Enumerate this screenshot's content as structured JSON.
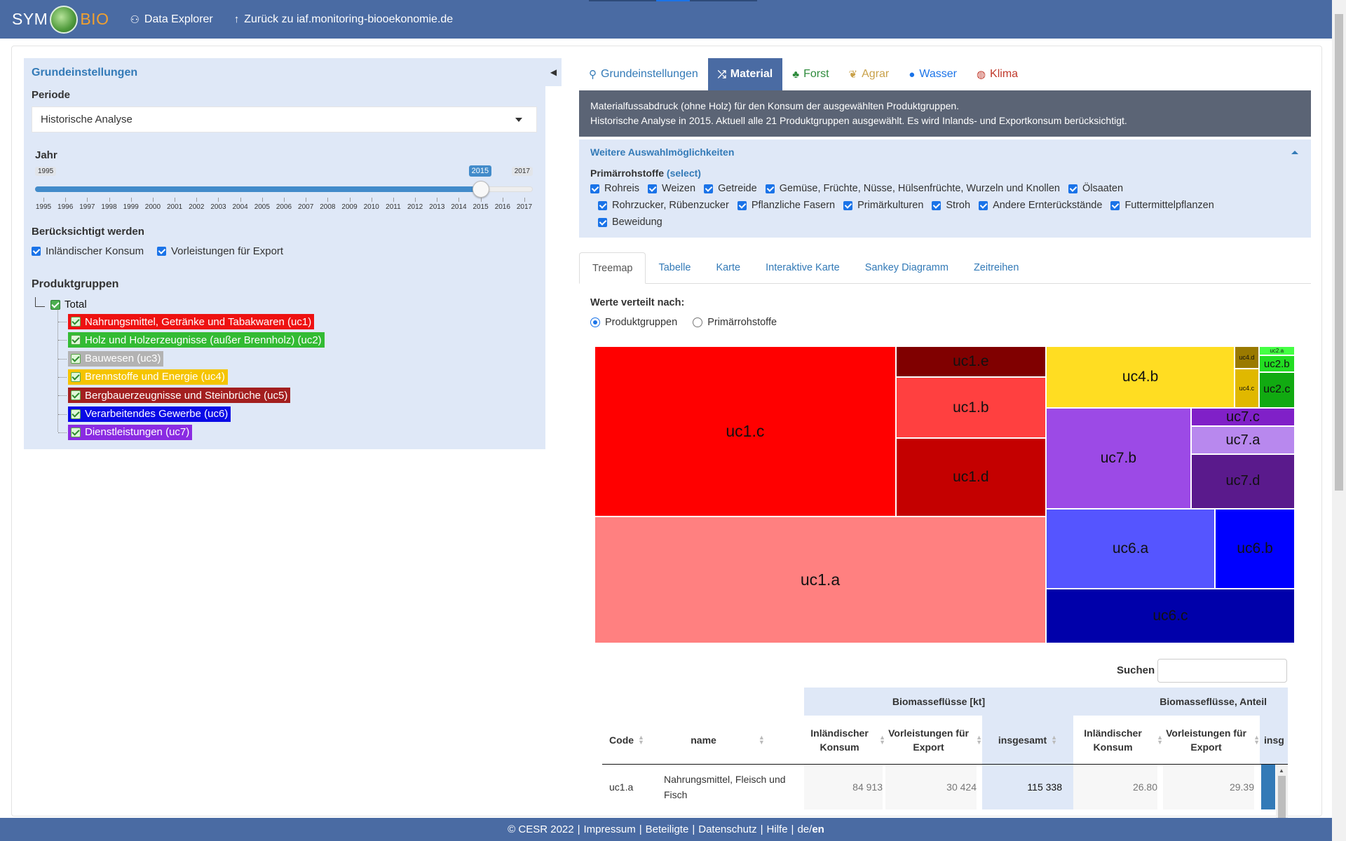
{
  "navbar": {
    "brand_sym": "SYM",
    "brand_bio": "BIO",
    "links": [
      {
        "icon": "binoculars-icon",
        "glyph": "⚇",
        "label": "Data Explorer"
      },
      {
        "icon": "arrow-up-icon",
        "glyph": "↑",
        "label": "Zurück zu iaf.monitoring-biooekonomie.de"
      }
    ],
    "color": "#4a6ba3"
  },
  "sidebar": {
    "title": "Grundeinstellungen",
    "periode_label": "Periode",
    "periode_value": "Historische Analyse",
    "jahr_label": "Jahr",
    "slider": {
      "min": 1995,
      "max": 2017,
      "value": 2015,
      "min_label": "1995",
      "max_label": "2017",
      "value_label": "2015",
      "ticks": [
        "1995",
        "1996",
        "1997",
        "1998",
        "1999",
        "2000",
        "2001",
        "2002",
        "2003",
        "2004",
        "2005",
        "2006",
        "2007",
        "2008",
        "2009",
        "2010",
        "2011",
        "2012",
        "2013",
        "2014",
        "2015",
        "2016",
        "2017"
      ]
    },
    "beruecksichtigt_label": "Berücksichtigt werden",
    "beruecksichtigt": [
      {
        "label": "Inländischer Konsum",
        "checked": true
      },
      {
        "label": "Vorleistungen für Export",
        "checked": true
      }
    ],
    "produktgruppen_label": "Produktgruppen",
    "tree_root": "Total",
    "tree_items": [
      {
        "label": "Nahrungsmittel, Getränke und Tabakwaren (uc1)",
        "color": "#ee1111"
      },
      {
        "label": "Holz und Holzerzeugnisse (außer Brennholz) (uc2)",
        "color": "#33bb33"
      },
      {
        "label": "Bauwesen (uc3)",
        "color": "#b3b3b3"
      },
      {
        "label": "Brennstoffe und Energie (uc4)",
        "color": "#f5c400"
      },
      {
        "label": "Bergbauerzeugnisse und Steinbrüche (uc5)",
        "color": "#a31f1f"
      },
      {
        "label": "Verarbeitendes Gewerbe (uc6)",
        "color": "#0a0ae6"
      },
      {
        "label": "Dienstleistungen (uc7)",
        "color": "#8a2be2"
      }
    ]
  },
  "main_tabs": [
    {
      "icon": "tree-people-icon",
      "glyph": "⚲",
      "label": "Grundeinstellungen",
      "color": "#337ab7",
      "active": false
    },
    {
      "icon": "shuffle-icon",
      "glyph": "⤮",
      "label": "Material",
      "color": "#ffffff",
      "active": true
    },
    {
      "icon": "tree-icon",
      "glyph": "♣",
      "label": "Forst",
      "color": "#2e8b3c",
      "active": false
    },
    {
      "icon": "leaf-icon",
      "glyph": "❦",
      "label": "Agrar",
      "color": "#c9a14a",
      "active": false
    },
    {
      "icon": "drop-icon",
      "glyph": "●",
      "label": "Wasser",
      "color": "#1a73e8",
      "active": false
    },
    {
      "icon": "globe-icon",
      "glyph": "◍",
      "label": "Klima",
      "color": "#c0392b",
      "active": false
    }
  ],
  "info": {
    "line1": "Materialfussabdruck (ohne Holz) für den Konsum der ausgewählten Produktgruppen.",
    "line2": "Historische Analyse in 2015. Aktuell alle 21 Produktgruppen ausgewählt. Es wird Inlands- und Exportkonsum berücksichtigt."
  },
  "weitere": {
    "title": "Weitere Auswahlmöglichkeiten",
    "prim_label": "Primärrohstoffe",
    "prim_select": "(select)",
    "rows": [
      [
        "Rohreis",
        "Weizen",
        "Getreide",
        "Gemüse, Früchte, Nüsse, Hülsenfrüchte, Wurzeln und Knollen",
        "Ölsaaten"
      ],
      [
        "Rohrzucker, Rübenzucker",
        "Pflanzliche Fasern",
        "Primärkulturen",
        "Stroh",
        "Andere Ernterückstände",
        "Futtermittelpflanzen"
      ],
      [
        "Beweidung"
      ]
    ]
  },
  "sub_tabs": [
    {
      "label": "Treemap",
      "active": true
    },
    {
      "label": "Tabelle",
      "active": false
    },
    {
      "label": "Karte",
      "active": false
    },
    {
      "label": "Interaktive Karte",
      "active": false
    },
    {
      "label": "Sankey Diagramm",
      "active": false
    },
    {
      "label": "Zeitreihen",
      "active": false
    }
  ],
  "werte_label": "Werte verteilt nach:",
  "radios": [
    {
      "label": "Produktgruppen",
      "checked": true
    },
    {
      "label": "Primärrohstoffe",
      "checked": false
    }
  ],
  "treemap": [
    {
      "label": "uc1.c",
      "color": "#ff0000"
    },
    {
      "label": "uc1.e",
      "color": "#800000"
    },
    {
      "label": "uc1.b",
      "color": "#ff4040"
    },
    {
      "label": "uc1.d",
      "color": "#c40000"
    },
    {
      "label": "uc1.a",
      "color": "#ff8080"
    },
    {
      "label": "uc4.b",
      "color": "#ffdd22"
    },
    {
      "label": "uc4.d",
      "color": "#9a7a00"
    },
    {
      "label": "uc4.c",
      "color": "#e0b800"
    },
    {
      "label": "uc2.a",
      "color": "#44ff44"
    },
    {
      "label": "uc2.b",
      "color": "#22dd22"
    },
    {
      "label": "uc2.c",
      "color": "#11aa11"
    },
    {
      "label": "uc7.b",
      "color": "#9c4ae6"
    },
    {
      "label": "uc7.c",
      "color": "#8020c8"
    },
    {
      "label": "uc7.a",
      "color": "#b888ee"
    },
    {
      "label": "uc7.d",
      "color": "#5a1a8c"
    },
    {
      "label": "uc6.a",
      "color": "#5555ff"
    },
    {
      "label": "uc6.b",
      "color": "#0000ff"
    },
    {
      "label": "uc6.c",
      "color": "#0000aa"
    }
  ],
  "search_label": "Suchen",
  "table": {
    "group1": "Biomasseflüsse [kt]",
    "group2": "Biomasseflüsse, Anteil",
    "col_code": "Code",
    "col_name": "name",
    "col_ik1": "Inländischer Konsum",
    "col_vl1": "Vorleistungen für Export",
    "col_ins1": "insgesamt",
    "col_ik2": "Inländischer Konsum",
    "col_vl2": "Vorleistungen für Export",
    "col_ins2": "insg",
    "rows": [
      {
        "code": "uc1.a",
        "name": "Nahrungsmittel, Fleisch und Fisch",
        "ik1": "84 913",
        "vl1": "30 424",
        "ins1": "115 338",
        "ik2": "26.80",
        "vl2": "29.39"
      }
    ]
  },
  "footer": {
    "copyright": "© CESR 2022",
    "links": [
      "Impressum",
      "Beteiligte",
      "Datenschutz",
      "Hilfe"
    ],
    "lang_de": "de/",
    "lang_en": "en"
  }
}
